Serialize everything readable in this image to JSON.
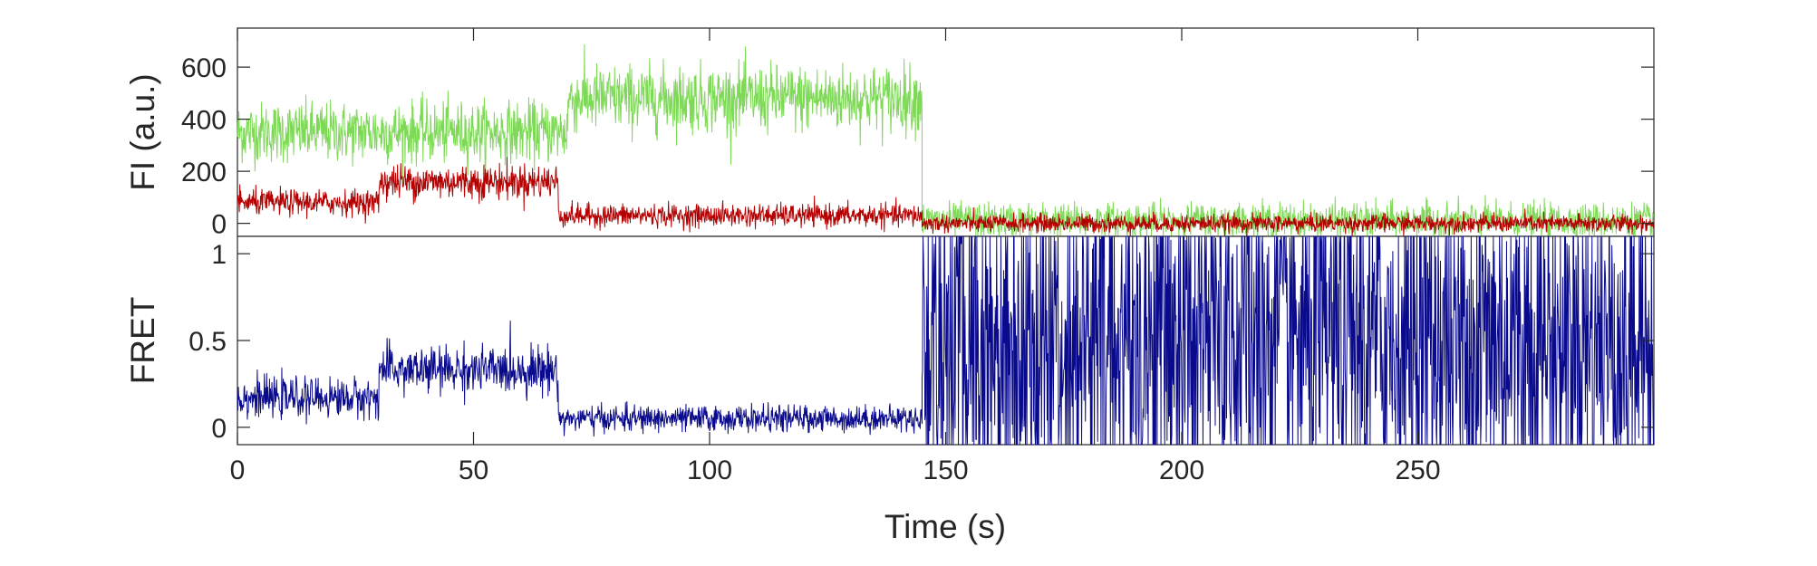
{
  "chart_data": [
    {
      "type": "line",
      "panel": "top",
      "ylabel": "FI (a.u.)",
      "xlim": [
        0,
        300
      ],
      "ylim": [
        -50,
        750
      ],
      "yticks": [
        0,
        200,
        400,
        600
      ],
      "ytick_labels": [
        "0",
        "200",
        "400",
        "600"
      ],
      "grid": false,
      "colors": {
        "donor": "#7ed957",
        "acceptor": "#b40000"
      },
      "series_segments": [
        {
          "series": "donor",
          "color": "#7ed957",
          "segments": [
            {
              "x": [
                0,
                70
              ],
              "level": 350,
              "noise": 95
            },
            {
              "x": [
                70,
                145
              ],
              "level": 480,
              "noise": 105
            },
            {
              "x": [
                145,
                300
              ],
              "level": 10,
              "noise": 55
            }
          ]
        },
        {
          "series": "acceptor",
          "color": "#b40000",
          "segments": [
            {
              "x": [
                0,
                30
              ],
              "level": 80,
              "noise": 40
            },
            {
              "x": [
                30,
                68
              ],
              "level": 160,
              "noise": 55
            },
            {
              "x": [
                68,
                145
              ],
              "level": 30,
              "noise": 35
            },
            {
              "x": [
                145,
                300
              ],
              "level": 0,
              "noise": 28
            }
          ]
        }
      ]
    },
    {
      "type": "line",
      "panel": "bottom",
      "ylabel": "FRET",
      "xlabel": "Time (s)",
      "xlim": [
        0,
        300
      ],
      "ylim": [
        -0.1,
        1.1
      ],
      "yticks": [
        0,
        0.5,
        1
      ],
      "ytick_labels": [
        "0",
        "0.5",
        "1"
      ],
      "xticks": [
        0,
        50,
        100,
        150,
        200,
        250
      ],
      "xtick_labels": [
        "0",
        "50",
        "100",
        "150",
        "200",
        "250"
      ],
      "grid": false,
      "colors": {
        "fret": "#0a0a8c"
      },
      "series_segments": [
        {
          "series": "fret",
          "color": "#0a0a8c",
          "segments": [
            {
              "x": [
                0,
                30
              ],
              "level": 0.17,
              "noise": 0.09
            },
            {
              "x": [
                30,
                68
              ],
              "level": 0.33,
              "noise": 0.11
            },
            {
              "x": [
                68,
                145
              ],
              "level": 0.05,
              "noise": 0.06
            },
            {
              "x": [
                145,
                300
              ],
              "level": 0.5,
              "noise": 0.6,
              "clipped": true
            }
          ]
        }
      ]
    }
  ]
}
